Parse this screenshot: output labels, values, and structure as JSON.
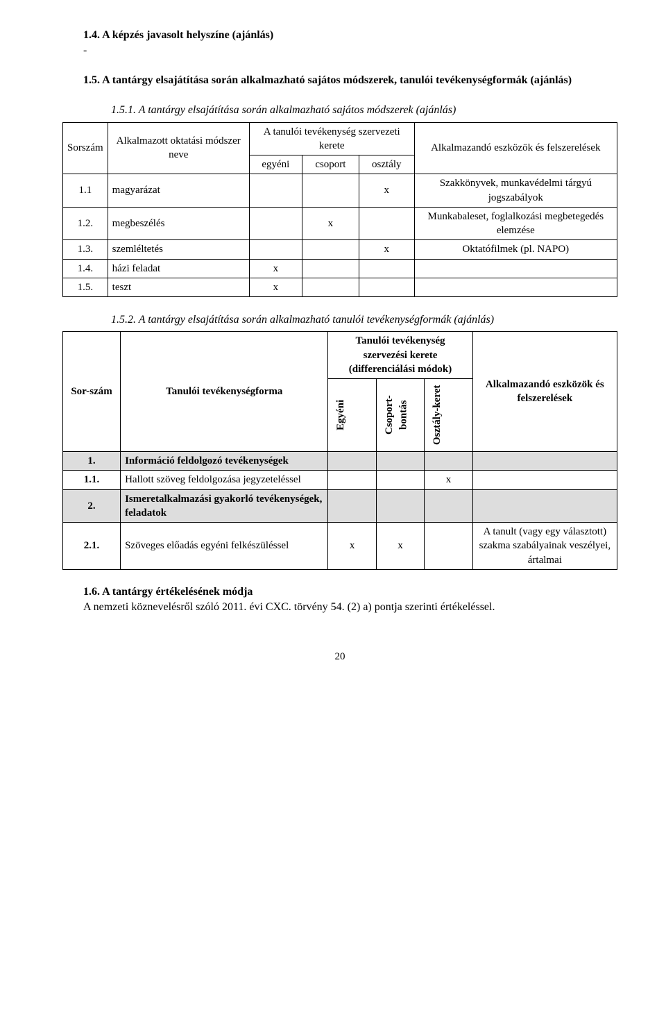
{
  "s14": {
    "title": "1.4. A képzés javasolt helyszíne (ajánlás)",
    "dash": "-"
  },
  "s15": {
    "title": "1.5. A tantárgy elsajátítása során alkalmazható sajátos módszerek, tanulói tevékenységformák (ajánlás)"
  },
  "s151": {
    "title": "1.5.1. A tantárgy elsajátítása során alkalmazható sajátos módszerek (ajánlás)",
    "headers": {
      "sorszam": "Sorszám",
      "modszer": "Alkalmazott oktatási módszer neve",
      "tev": "A tanulói tevékenység szervezeti kerete",
      "egyeni": "egyéni",
      "csoport": "csoport",
      "osztaly": "osztály",
      "eszkoz": "Alkalmazandó eszközök és felszerelések"
    },
    "rows": [
      {
        "n": "1.1",
        "m": "magyarázat",
        "e": "",
        "c": "",
        "o": "x",
        "tool": "Szakkönyvek, munkavédelmi tárgyú jogszabályok"
      },
      {
        "n": "1.2.",
        "m": "megbeszélés",
        "e": "",
        "c": "x",
        "o": "",
        "tool": "Munkabaleset, foglalkozási megbetegedés elemzése"
      },
      {
        "n": "1.3.",
        "m": "szemléltetés",
        "e": "",
        "c": "",
        "o": "x",
        "tool": "Oktatófilmek (pl. NAPO)"
      },
      {
        "n": "1.4.",
        "m": "házi feladat",
        "e": "x",
        "c": "",
        "o": "",
        "tool": ""
      },
      {
        "n": "1.5.",
        "m": "teszt",
        "e": "x",
        "c": "",
        "o": "",
        "tool": ""
      }
    ]
  },
  "s152": {
    "title": "1.5.2. A tantárgy elsajátítása során alkalmazható tanulói tevékenységformák (ajánlás)",
    "headers": {
      "sor": "Sor-szám",
      "form": "Tanulói tevékenységforma",
      "kerete": "Tanulói tevékenység szervezési kerete (differenciálási módok)",
      "egyeni": "Egyéni",
      "csoport": "Csoport-bontás",
      "osztaly": "Osztály-keret",
      "eszkoz": "Alkalmazandó eszközök és felszerelések"
    },
    "rows": [
      {
        "n": "1.",
        "m": "Információ feldolgozó tevékenységek",
        "e": "",
        "c": "",
        "o": "",
        "tool": "",
        "shade": true,
        "bold": true
      },
      {
        "n": "1.1.",
        "m": "Hallott szöveg feldolgozása jegyzeteléssel",
        "e": "",
        "c": "",
        "o": "x",
        "tool": "",
        "shade": false
      },
      {
        "n": "2.",
        "m": "Ismeretalkalmazási gyakorló tevékenységek, feladatok",
        "e": "",
        "c": "",
        "o": "",
        "tool": "",
        "shade": true,
        "bold": true
      },
      {
        "n": "2.1.",
        "m": "Szöveges előadás egyéni felkészüléssel",
        "e": "x",
        "c": "x",
        "o": "",
        "tool": "A tanult (vagy egy választott) szakma szabályainak veszélyei, ártalmai",
        "shade": false
      }
    ]
  },
  "s16": {
    "title": "1.6. A tantárgy értékelésének módja",
    "body": "A nemzeti köznevelésről szóló 2011. évi CXC. törvény 54. (2) a) pontja szerinti értékeléssel."
  },
  "page": "20"
}
